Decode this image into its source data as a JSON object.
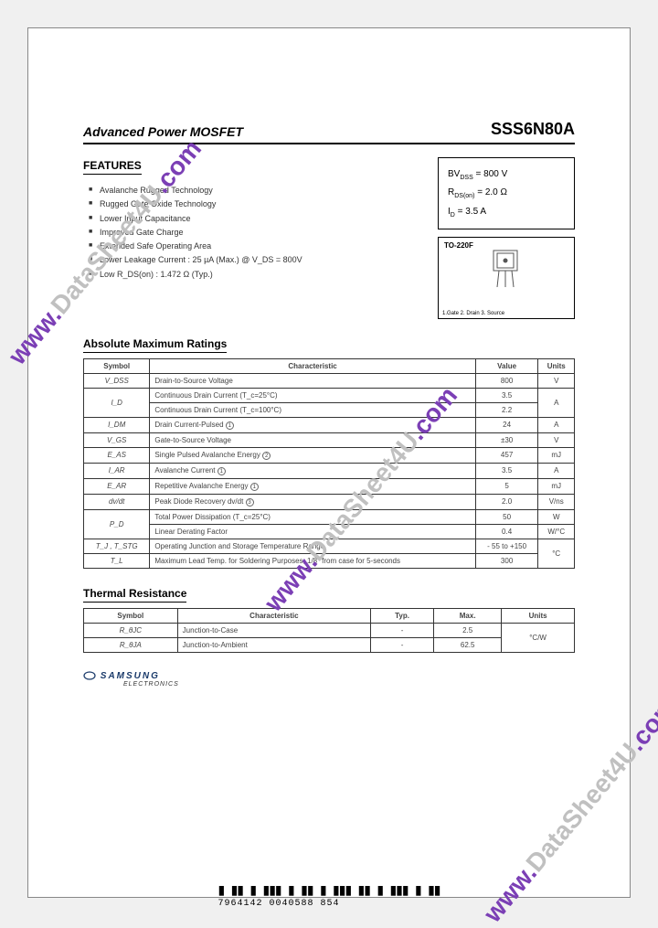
{
  "header": {
    "title_left": "Advanced Power MOSFET",
    "part_number": "SSS6N80A"
  },
  "features": {
    "heading": "FEATURES",
    "items": [
      "Avalanche Rugged Technology",
      "Rugged Gate Oxide Technology",
      "Lower Input Capacitance",
      "Improved Gate Charge",
      "Extended Safe Operating Area",
      "Lower Leakage Current : 25 µA (Max.) @ V_DS = 800V",
      "Low R_DS(on) : 1.472 Ω (Typ.)"
    ]
  },
  "spec_box": {
    "lines": [
      {
        "sym": "BV",
        "sub": "DSS",
        "eq": " = 800 V"
      },
      {
        "sym": "R",
        "sub": "DS(on)",
        "eq": " = 2.0 Ω"
      },
      {
        "sym": "I",
        "sub": "D",
        "eq": " = 3.5 A"
      }
    ]
  },
  "package": {
    "label": "TO-220F",
    "pins": "1.Gate  2. Drain  3. Source"
  },
  "abs_max": {
    "heading": "Absolute Maximum Ratings",
    "cols": [
      "Symbol",
      "Characteristic",
      "Value",
      "Units"
    ],
    "rows": [
      {
        "sym": "V_DSS",
        "char": "Drain-to-Source Voltage",
        "val": "800",
        "unit": "V",
        "rs_sym": 1,
        "rs_unit": 1
      },
      {
        "sym": "I_D",
        "char": "Continuous Drain Current (T_c=25°C)",
        "val": "3.5",
        "unit": "A",
        "rs_sym": 2,
        "rs_unit": 2
      },
      {
        "sym": "",
        "char": "Continuous Drain Current (T_c=100°C)",
        "val": "2.2",
        "unit": "",
        "rs_sym": 0,
        "rs_unit": 0
      },
      {
        "sym": "I_DM",
        "char": "Drain Current-Pulsed",
        "note": "①",
        "val": "24",
        "unit": "A",
        "rs_sym": 1,
        "rs_unit": 1
      },
      {
        "sym": "V_GS",
        "char": "Gate-to-Source Voltage",
        "val": "±30",
        "unit": "V",
        "rs_sym": 1,
        "rs_unit": 1
      },
      {
        "sym": "E_AS",
        "char": "Single Pulsed Avalanche Energy",
        "note": "②",
        "val": "457",
        "unit": "mJ",
        "rs_sym": 1,
        "rs_unit": 1
      },
      {
        "sym": "I_AR",
        "char": "Avalanche Current",
        "note": "①",
        "val": "3.5",
        "unit": "A",
        "rs_sym": 1,
        "rs_unit": 1
      },
      {
        "sym": "E_AR",
        "char": "Repetitive Avalanche Energy",
        "note": "①",
        "val": "5",
        "unit": "mJ",
        "rs_sym": 1,
        "rs_unit": 1
      },
      {
        "sym": "dv/dt",
        "char": "Peak Diode Recovery dv/dt",
        "note": "③",
        "val": "2.0",
        "unit": "V/ns",
        "rs_sym": 1,
        "rs_unit": 1
      },
      {
        "sym": "P_D",
        "char": "Total Power Dissipation (T_c=25°C)",
        "val": "50",
        "unit": "W",
        "rs_sym": 2,
        "rs_unit": 1
      },
      {
        "sym": "",
        "char": "Linear Derating Factor",
        "val": "0.4",
        "unit": "W/°C",
        "rs_sym": 0,
        "rs_unit": 1
      },
      {
        "sym": "T_J , T_STG",
        "char": "Operating Junction and Storage Temperature Range",
        "val": "- 55 to +150",
        "unit": "°C",
        "rs_sym": 1,
        "rs_unit": 2
      },
      {
        "sym": "T_L",
        "char": "Maximum Lead Temp. for Soldering Purposes, 1/8\" from case for 5-seconds",
        "val": "300",
        "unit": "",
        "rs_sym": 1,
        "rs_unit": 0
      }
    ]
  },
  "thermal": {
    "heading": "Thermal Resistance",
    "cols": [
      "Symbol",
      "Characteristic",
      "Typ.",
      "Max.",
      "Units"
    ],
    "rows": [
      {
        "sym": "R_θJC",
        "char": "Junction-to-Case",
        "typ": "-",
        "max": "2.5",
        "unit": "°C/W",
        "rs_unit": 2
      },
      {
        "sym": "R_θJA",
        "char": "Junction-to-Ambient",
        "typ": "-",
        "max": "62.5",
        "unit": "",
        "rs_unit": 0
      }
    ]
  },
  "brand": {
    "name": "SAMSUNG",
    "sub": "ELECTRONICS"
  },
  "watermark": {
    "p1": "www.",
    "p2": "DataSheet4U",
    "p3": ".com"
  },
  "barcode": "7964142 0040588 854",
  "style": {
    "page_bg": "#ffffff",
    "body_bg": "#f0f0f0",
    "border_color": "#333333",
    "text_color": "#444444",
    "wm_purple": "#7b3fb5",
    "wm_gray": "#c0c0c0",
    "logo_color": "#1a3a6a"
  }
}
